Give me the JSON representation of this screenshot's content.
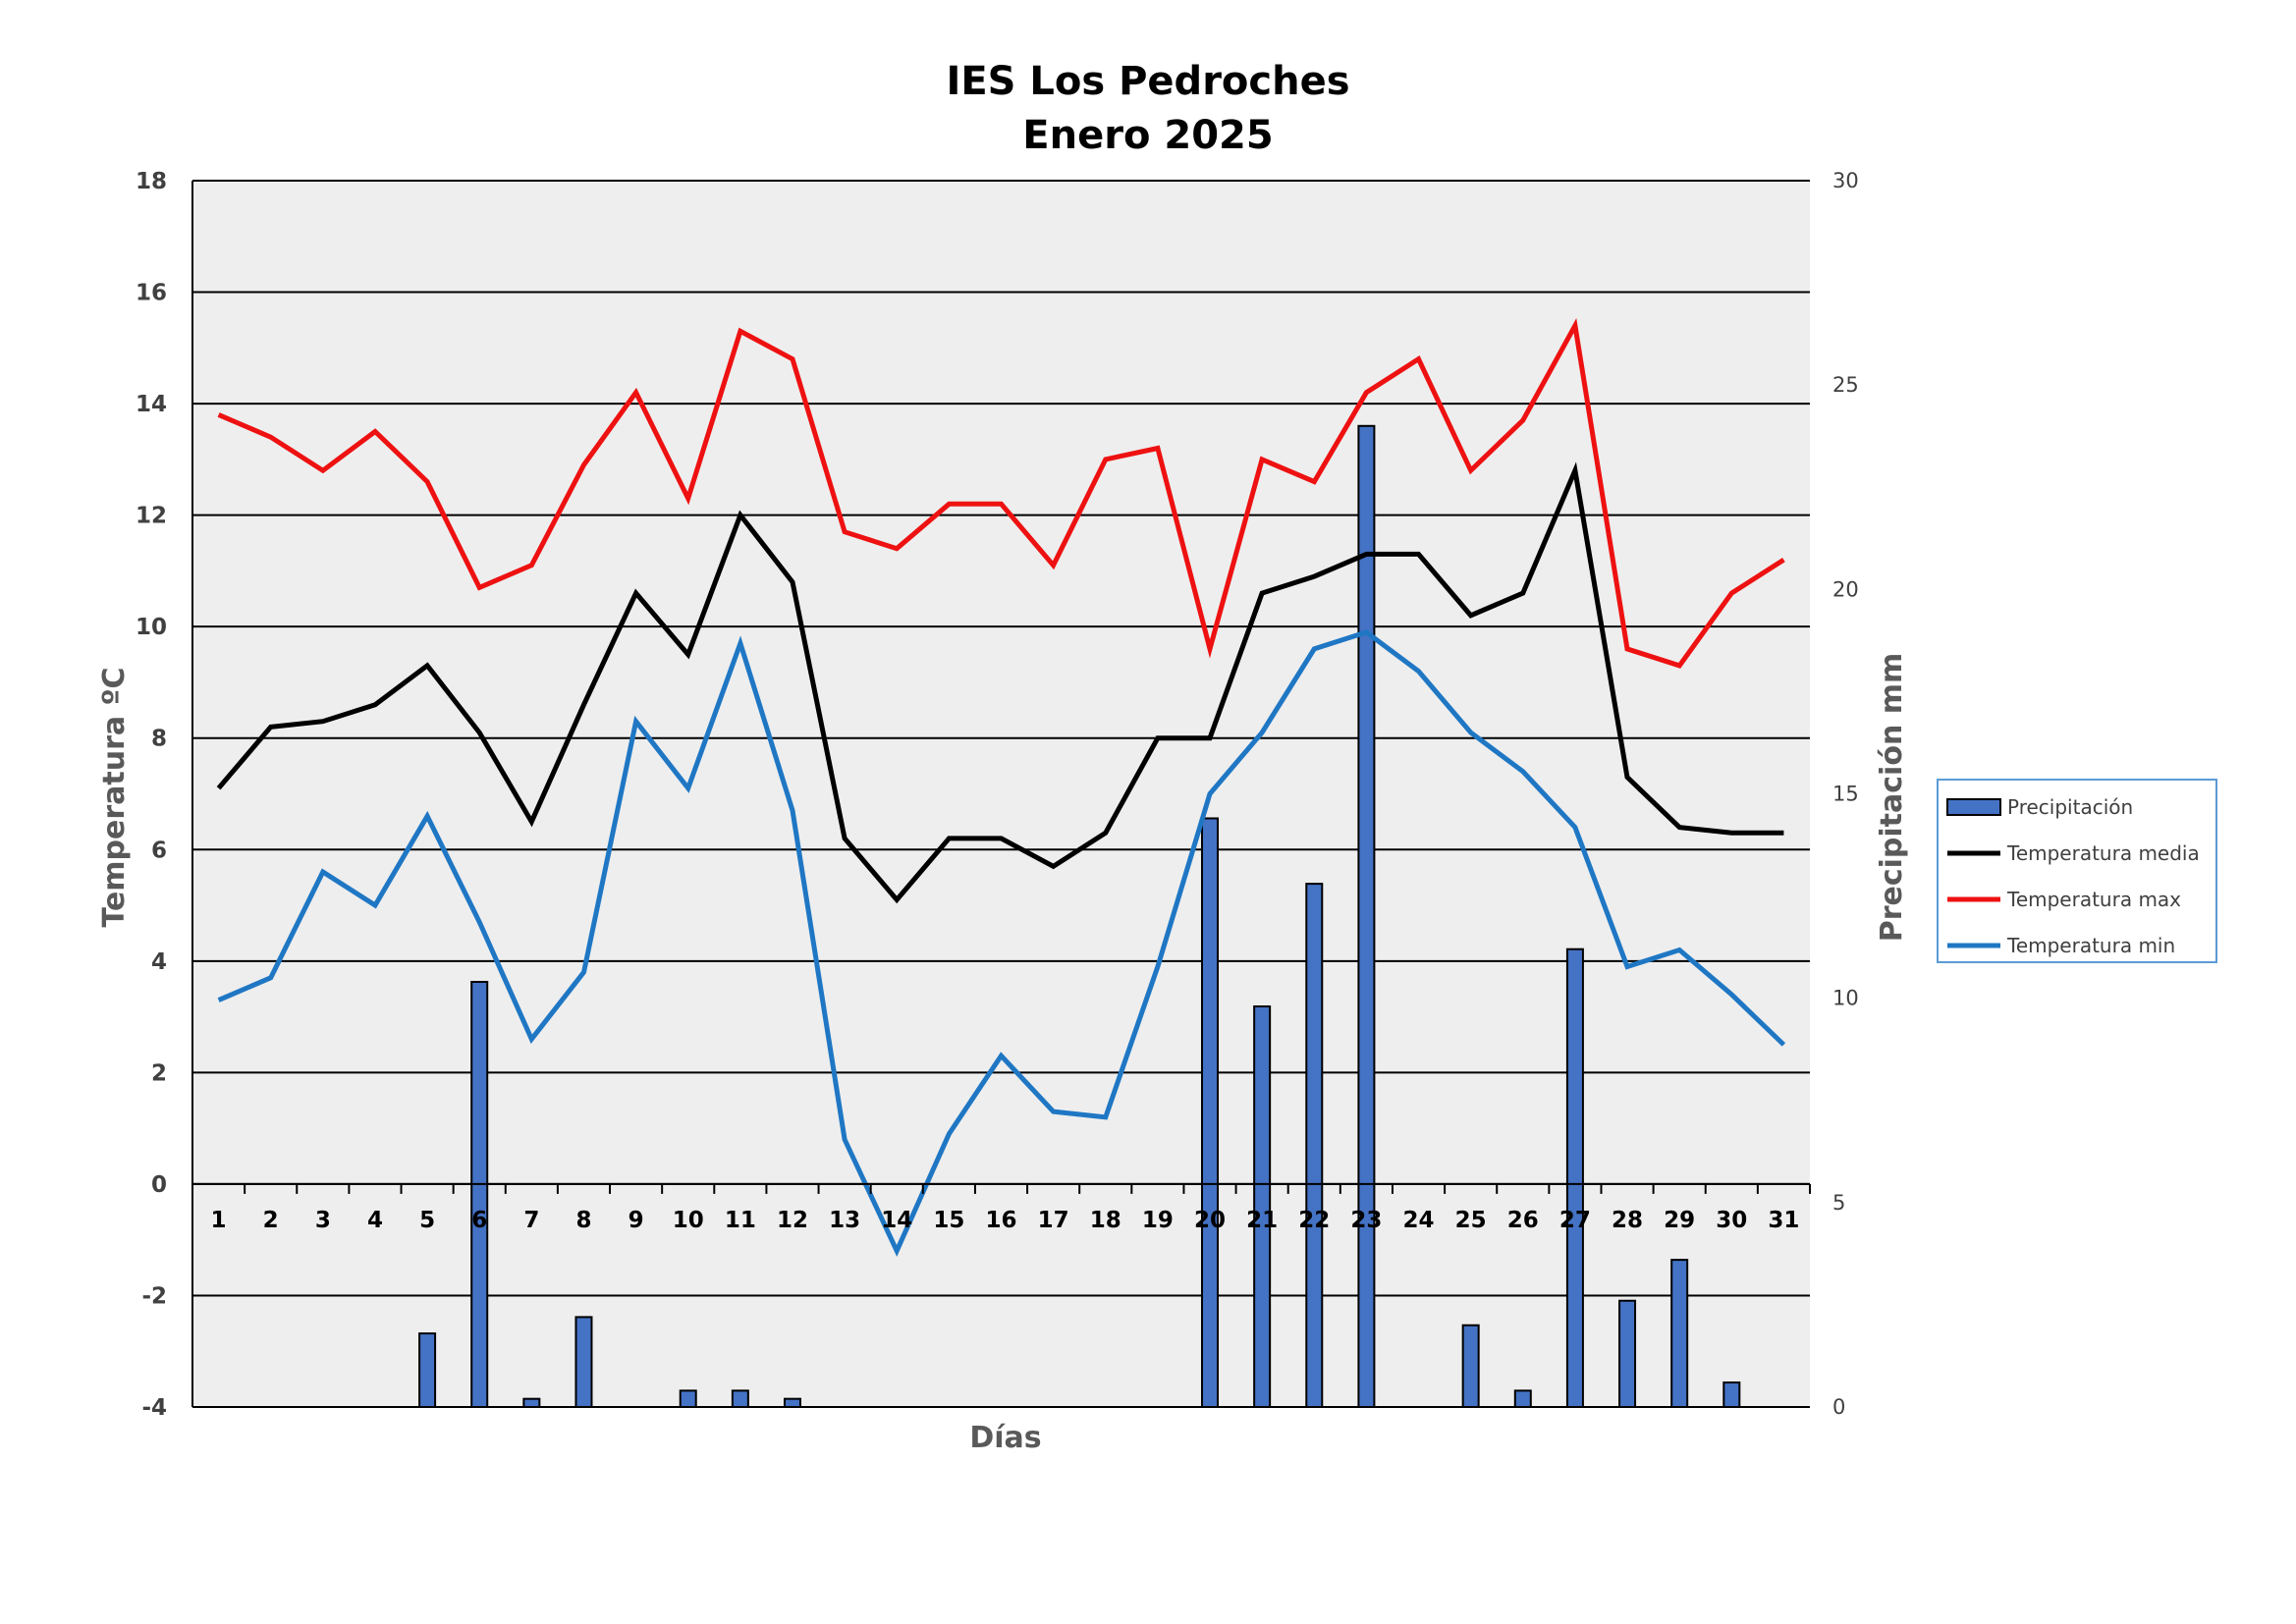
{
  "chart_data": {
    "type": "bar+line",
    "title": [
      "IES Los Pedroches",
      "Enero 2025"
    ],
    "xlabel": "Días",
    "ylabel_left": "Temperatura ºC",
    "ylabel_right": "Precipitación mm",
    "ylim_left": [
      -4,
      18
    ],
    "ylim_right": [
      0,
      30
    ],
    "yticks_left": [
      "18",
      "16",
      "14",
      "12",
      "10",
      "8",
      "6",
      "4",
      "2",
      "0",
      "-2",
      "-4"
    ],
    "yticks_right": [
      "30",
      "25",
      "20",
      "15",
      "10",
      "5",
      "0"
    ],
    "categories": [
      "1",
      "2",
      "3",
      "4",
      "5",
      "6",
      "7",
      "8",
      "9",
      "10",
      "11",
      "12",
      "13",
      "14",
      "15",
      "16",
      "17",
      "18",
      "19",
      "20",
      "21",
      "22",
      "23",
      "24",
      "25",
      "26",
      "27",
      "28",
      "29",
      "30",
      "31"
    ],
    "grid": true,
    "legend_position": "right",
    "series": [
      {
        "name": "Precipitación",
        "kind": "bar",
        "axis": "right",
        "color": "#4472C4",
        "values": [
          0,
          0,
          0,
          0,
          1.8,
          10.4,
          0.2,
          2.2,
          0,
          0.4,
          0.4,
          0.2,
          0,
          0,
          0,
          0,
          0,
          0,
          0,
          14.4,
          9.8,
          12.8,
          24.0,
          0,
          2.0,
          0.4,
          11.2,
          2.6,
          3.6,
          0.6,
          0
        ]
      },
      {
        "name": "Temperatura media",
        "kind": "line",
        "axis": "left",
        "color": "#000000",
        "values": [
          7.1,
          8.2,
          8.3,
          8.6,
          9.3,
          8.1,
          6.5,
          8.6,
          10.6,
          9.5,
          12.0,
          10.8,
          6.2,
          5.1,
          6.2,
          6.2,
          5.7,
          6.3,
          8.0,
          8.0,
          10.6,
          10.9,
          11.3,
          11.3,
          10.2,
          10.6,
          12.8,
          7.3,
          6.4,
          6.3,
          6.3
        ]
      },
      {
        "name": "Temperatura max",
        "kind": "line",
        "axis": "left",
        "color": "#EE1111",
        "values": [
          13.8,
          13.4,
          12.8,
          13.5,
          12.6,
          10.7,
          11.1,
          12.9,
          14.2,
          12.3,
          15.3,
          14.8,
          11.7,
          11.4,
          12.2,
          12.2,
          11.1,
          13.0,
          13.2,
          9.6,
          13.0,
          12.6,
          14.2,
          14.8,
          12.8,
          13.7,
          15.4,
          9.6,
          9.3,
          10.6,
          11.2
        ]
      },
      {
        "name": "Temperatura min",
        "kind": "line",
        "axis": "left",
        "color": "#1F77C4",
        "values": [
          3.3,
          3.7,
          5.6,
          5.0,
          6.6,
          4.7,
          2.6,
          3.8,
          8.3,
          7.1,
          9.7,
          6.7,
          0.8,
          -1.2,
          0.9,
          2.3,
          1.3,
          1.2,
          3.9,
          7.0,
          8.1,
          9.6,
          9.9,
          9.2,
          8.1,
          7.4,
          6.4,
          3.9,
          4.2,
          3.4,
          2.5
        ]
      }
    ]
  }
}
